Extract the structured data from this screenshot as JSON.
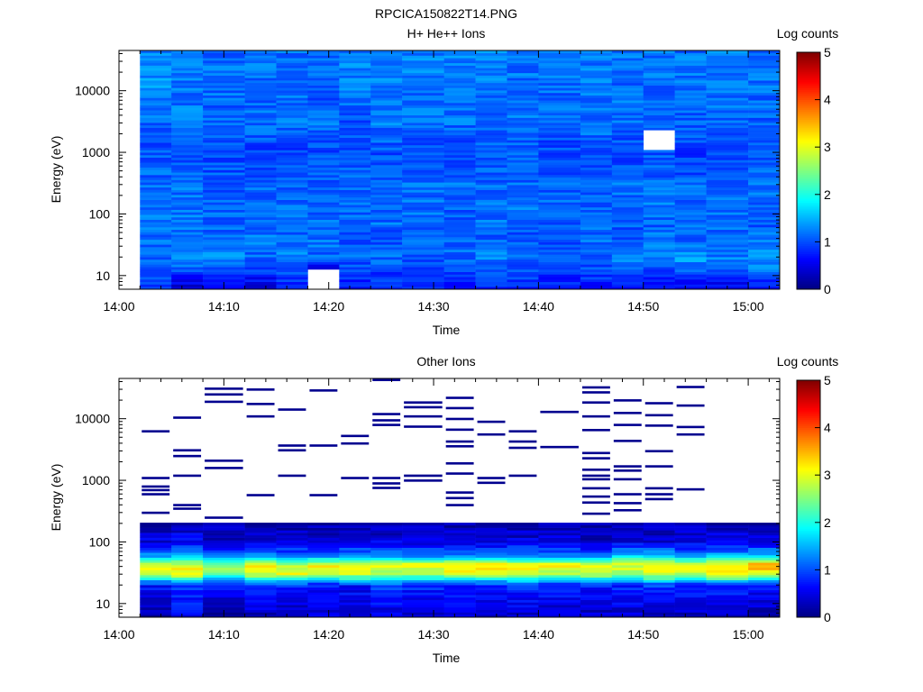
{
  "figure_title": "RPCICA150822T14.PNG",
  "colorbar_ticks": [
    0,
    1,
    2,
    3,
    4,
    5
  ],
  "chart_data": [
    {
      "type": "heatmap",
      "title": "H+ He++ Ions",
      "xlabel": "Time",
      "ylabel": "Energy (eV)",
      "colorbar_label": "Log counts",
      "colorbar_range": [
        0,
        5
      ],
      "yscale": "log",
      "xlim": [
        "14:00",
        "15:03"
      ],
      "ylim": [
        6,
        45000
      ],
      "x_ticks": [
        "14:00",
        "14:10",
        "14:20",
        "14:30",
        "14:40",
        "14:50",
        "15:00"
      ],
      "y_ticks": [
        10,
        100,
        1000,
        10000
      ],
      "y_tick_labels": [
        "10",
        "100",
        "1000",
        "10000"
      ],
      "time_bins": [
        "14:02",
        "14:05",
        "14:08",
        "14:12",
        "14:15",
        "14:18",
        "14:21",
        "14:24",
        "14:27",
        "14:31",
        "14:34",
        "14:37",
        "14:40",
        "14:44",
        "14:47",
        "14:50",
        "14:53",
        "14:56",
        "15:00"
      ],
      "time_bin_end": "15:03",
      "energy_range": [
        6,
        45000
      ],
      "energy_bins": 96,
      "column_profiles": [
        [
          0.9,
          1.15,
          1.15,
          1.2,
          1.2,
          1.15,
          1.0,
          1.15,
          1.3,
          1.35
        ],
        [
          0.4,
          1.35,
          1.1,
          1.2,
          1.2,
          1.15,
          1.0,
          1.2,
          1.2,
          1.2
        ],
        [
          0.45,
          1.35,
          1.15,
          1.1,
          1.1,
          1.1,
          0.95,
          1.1,
          1.15,
          1.15
        ],
        [
          0.5,
          1.1,
          1.2,
          1.15,
          1.2,
          1.1,
          0.95,
          1.15,
          1.1,
          1.2
        ],
        [
          0.7,
          1.25,
          1.1,
          1.15,
          1.1,
          1.1,
          0.95,
          1.2,
          1.15,
          1.15
        ],
        [
          -1,
          1.15,
          1.15,
          1.1,
          1.15,
          1.05,
          1.0,
          1.15,
          1.05,
          1.2
        ],
        [
          0.65,
          1.1,
          1.05,
          1.15,
          1.15,
          1.15,
          0.95,
          1.05,
          1.2,
          1.25
        ],
        [
          0.7,
          1.15,
          1.05,
          1.15,
          1.15,
          1.15,
          1.0,
          1.2,
          1.2,
          1.3
        ],
        [
          0.7,
          1.05,
          1.15,
          1.1,
          1.15,
          1.15,
          1.0,
          1.15,
          1.2,
          1.25
        ],
        [
          0.7,
          1.1,
          1.1,
          1.05,
          1.1,
          1.15,
          0.95,
          1.15,
          1.25,
          1.3
        ],
        [
          0.75,
          1.3,
          1.1,
          1.15,
          1.15,
          1.1,
          1.0,
          1.15,
          1.2,
          1.25
        ],
        [
          0.75,
          1.2,
          1.1,
          1.05,
          1.2,
          1.15,
          1.05,
          1.2,
          1.15,
          1.2
        ],
        [
          0.7,
          1.1,
          1.05,
          1.1,
          1.15,
          1.1,
          0.95,
          1.1,
          1.15,
          1.2
        ],
        [
          0.7,
          1.15,
          1.15,
          1.15,
          1.15,
          1.1,
          1.05,
          1.2,
          1.2,
          1.2
        ],
        [
          0.7,
          1.25,
          1.1,
          1.05,
          1.1,
          1.15,
          0.95,
          1.15,
          1.15,
          1.2
        ],
        [
          0.65,
          1.2,
          1.2,
          1.1,
          1.2,
          1.15,
          1.0,
          1.15,
          1.15,
          1.2
        ],
        [
          0.5,
          1.45,
          1.1,
          1.15,
          1.2,
          1.1,
          0.9,
          1.1,
          1.2,
          1.2
        ],
        [
          0.55,
          1.25,
          1.15,
          1.1,
          1.15,
          1.15,
          0.95,
          1.15,
          1.2,
          1.25
        ],
        [
          0.6,
          1.5,
          1.2,
          1.05,
          1.15,
          1.15,
          1.0,
          1.1,
          1.15,
          1.2
        ]
      ],
      "profile_energy_nodes": [
        6,
        20,
        40,
        70,
        100,
        300,
        1000,
        3000,
        10000,
        45000
      ],
      "empty_cells": [
        [
          5,
          0
        ],
        [
          15,
          7
        ]
      ]
    },
    {
      "type": "heatmap",
      "title": "Other Ions",
      "xlabel": "Time",
      "ylabel": "Energy (eV)",
      "colorbar_label": "Log counts",
      "colorbar_range": [
        0,
        5
      ],
      "yscale": "log",
      "xlim": [
        "14:00",
        "15:03"
      ],
      "ylim": [
        6,
        45000
      ],
      "x_ticks": [
        "14:00",
        "14:10",
        "14:20",
        "14:30",
        "14:40",
        "14:50",
        "15:00"
      ],
      "y_ticks": [
        10,
        100,
        1000,
        10000
      ],
      "y_tick_labels": [
        "10",
        "100",
        "1000",
        "10000"
      ],
      "time_bins": [
        "14:02",
        "14:05",
        "14:08",
        "14:12",
        "14:15",
        "14:18",
        "14:21",
        "14:24",
        "14:27",
        "14:31",
        "14:34",
        "14:37",
        "14:40",
        "14:44",
        "14:47",
        "14:50",
        "14:53",
        "14:56",
        "15:00"
      ],
      "time_bin_end": "15:03",
      "energy_range": [
        6,
        45000
      ],
      "energy_bins": 96,
      "column_profiles": [
        [
          0.2,
          0.7,
          2.6,
          3.1,
          1.4,
          0.5,
          0.2
        ],
        [
          0.5,
          0.9,
          3.3,
          3.0,
          1.6,
          0.6,
          0.3
        ],
        [
          0.1,
          0.8,
          2.3,
          2.7,
          1.1,
          0.4,
          0.2
        ],
        [
          0.3,
          0.9,
          2.8,
          3.3,
          1.3,
          0.5,
          0.2
        ],
        [
          0.3,
          0.8,
          3.0,
          2.9,
          1.2,
          0.4,
          0.2
        ],
        [
          0.4,
          0.7,
          2.9,
          3.1,
          1.2,
          0.5,
          0.2
        ],
        [
          0.3,
          0.7,
          2.8,
          3.2,
          1.3,
          0.5,
          0.2
        ],
        [
          0.4,
          0.9,
          2.8,
          2.9,
          1.4,
          0.5,
          0.2
        ],
        [
          0.3,
          0.8,
          2.6,
          3.1,
          1.2,
          0.5,
          0.2
        ],
        [
          0.3,
          0.8,
          2.9,
          3.2,
          1.3,
          0.5,
          0.2
        ],
        [
          0.2,
          0.8,
          2.8,
          3.3,
          1.2,
          0.5,
          0.2
        ],
        [
          0.4,
          0.9,
          2.8,
          3.1,
          1.3,
          0.5,
          0.2
        ],
        [
          0.3,
          0.8,
          2.7,
          3.2,
          1.1,
          0.5,
          0.2
        ],
        [
          0.3,
          0.8,
          2.8,
          3.1,
          1.2,
          0.4,
          0.2
        ],
        [
          0.3,
          0.8,
          2.6,
          3.0,
          1.6,
          0.5,
          0.2
        ],
        [
          0.3,
          0.9,
          2.9,
          3.3,
          1.5,
          0.5,
          0.2
        ],
        [
          0.3,
          0.8,
          2.8,
          3.2,
          1.2,
          0.5,
          0.2
        ],
        [
          0.3,
          0.9,
          3.2,
          3.4,
          1.4,
          0.6,
          0.2
        ],
        [
          0.2,
          0.7,
          3.1,
          3.7,
          1.6,
          0.5,
          0.2
        ]
      ],
      "profile_energy_nodes": [
        6,
        20,
        30,
        42,
        60,
        100,
        200
      ],
      "high_energy_streaks": [
        [
          0,
          [
            6300,
            1100,
            800,
            700,
            600,
            300
          ]
        ],
        [
          1,
          [
            10500,
            3100,
            2500,
            1200,
            400,
            350
          ]
        ],
        [
          2,
          [
            31000,
            25000,
            19000,
            2100,
            1600,
            250
          ]
        ],
        [
          3,
          [
            30000,
            17500,
            11000,
            580
          ]
        ],
        [
          4,
          [
            14200,
            3700,
            3100,
            1200
          ]
        ],
        [
          5,
          [
            29000,
            3700,
            580
          ]
        ],
        [
          6,
          [
            5300,
            4000,
            1100
          ]
        ],
        [
          7,
          [
            43000,
            12000,
            9500,
            8000,
            1100,
            900,
            760
          ]
        ],
        [
          8,
          [
            18500,
            15500,
            11000,
            7500,
            1200,
            1000
          ]
        ],
        [
          9,
          [
            22000,
            15000,
            10000,
            6700,
            4300,
            3600,
            1900,
            1300,
            640,
            520,
            400
          ]
        ],
        [
          10,
          [
            9000,
            5600,
            1100,
            920
          ]
        ],
        [
          11,
          [
            6300,
            4300,
            3400,
            1200
          ]
        ],
        [
          12,
          [
            3500,
            13000
          ]
        ],
        [
          13,
          [
            32500,
            27000,
            18500,
            11000,
            6600,
            2800,
            2300,
            1500,
            1200,
            1050,
            750,
            550,
            440,
            290
          ]
        ],
        [
          14,
          [
            20000,
            12500,
            8000,
            4400,
            1700,
            1450,
            1050,
            600,
            430,
            330
          ]
        ],
        [
          15,
          [
            18000,
            11500,
            7800,
            3000,
            1700,
            750,
            600,
            500
          ]
        ],
        [
          16,
          [
            33000,
            16500,
            7400,
            5600,
            720
          ]
        ]
      ]
    }
  ]
}
